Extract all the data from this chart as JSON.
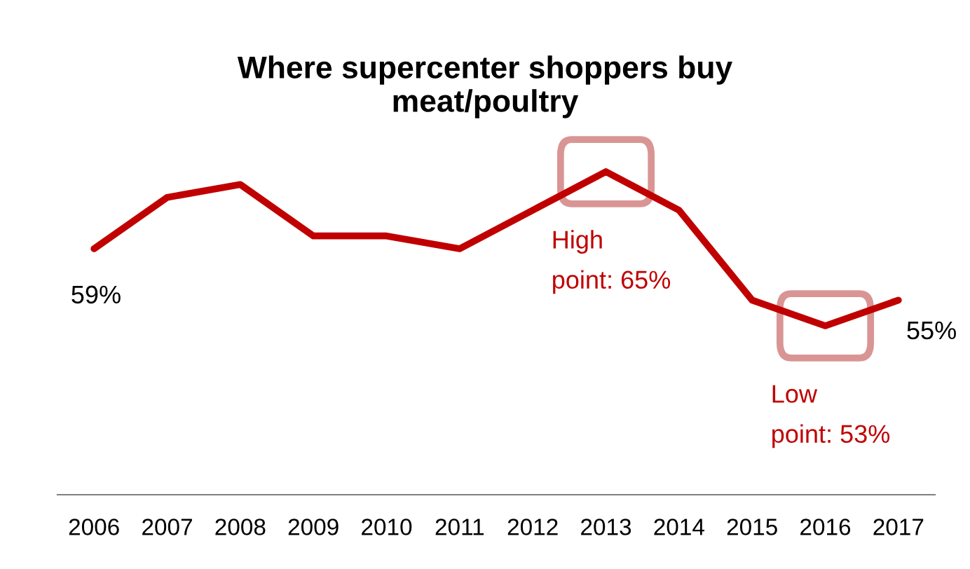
{
  "chart_data": {
    "type": "line",
    "title": "Where supercenter shoppers buy\nmeat/poultry",
    "categories": [
      "2006",
      "2007",
      "2008",
      "2009",
      "2010",
      "2011",
      "2012",
      "2013",
      "2014",
      "2015",
      "2016",
      "2017"
    ],
    "series": [
      {
        "color": "#c00000",
        "values": [
          59,
          63,
          64,
          60,
          60,
          59,
          62,
          65,
          62,
          55,
          53,
          55
        ],
        "value_labels": [
          "59%",
          null,
          null,
          null,
          null,
          null,
          null,
          null,
          null,
          null,
          null,
          "55%"
        ]
      }
    ],
    "annotations": [
      {
        "text": "High\npoint: 65%",
        "x": "2013",
        "y": 65
      },
      {
        "text": "Low\npoint: 53%",
        "x": "2016",
        "y": 53
      }
    ],
    "grid": false,
    "legend": false,
    "marker": "none",
    "line_style": "solid",
    "tick_labels": "x"
  }
}
